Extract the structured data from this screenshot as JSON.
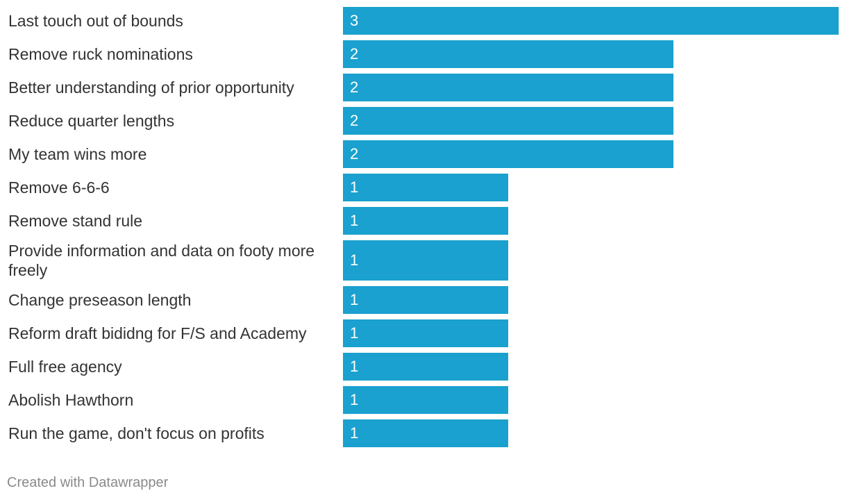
{
  "chart_data": {
    "type": "bar",
    "orientation": "horizontal",
    "categories": [
      "Last touch out of bounds",
      "Remove ruck nominations",
      "Better understanding of prior opportunity",
      "Reduce quarter lengths",
      "My team wins more",
      "Remove 6-6-6",
      "Remove stand rule",
      "Provide information and data on footy more freely",
      "Change preseason length",
      "Reform draft bididng for F/S and Academy",
      "Full free agency",
      "Abolish Hawthorn",
      "Run the game, don't focus on profits"
    ],
    "values": [
      3,
      2,
      2,
      2,
      2,
      1,
      1,
      1,
      1,
      1,
      1,
      1,
      1
    ],
    "xlim": [
      0,
      3
    ],
    "grid": false,
    "bar_color": "#1aa1cf",
    "value_label_color": "#ffffff",
    "title": "",
    "xlabel": "",
    "ylabel": ""
  },
  "footer": {
    "credit": "Created with Datawrapper"
  }
}
